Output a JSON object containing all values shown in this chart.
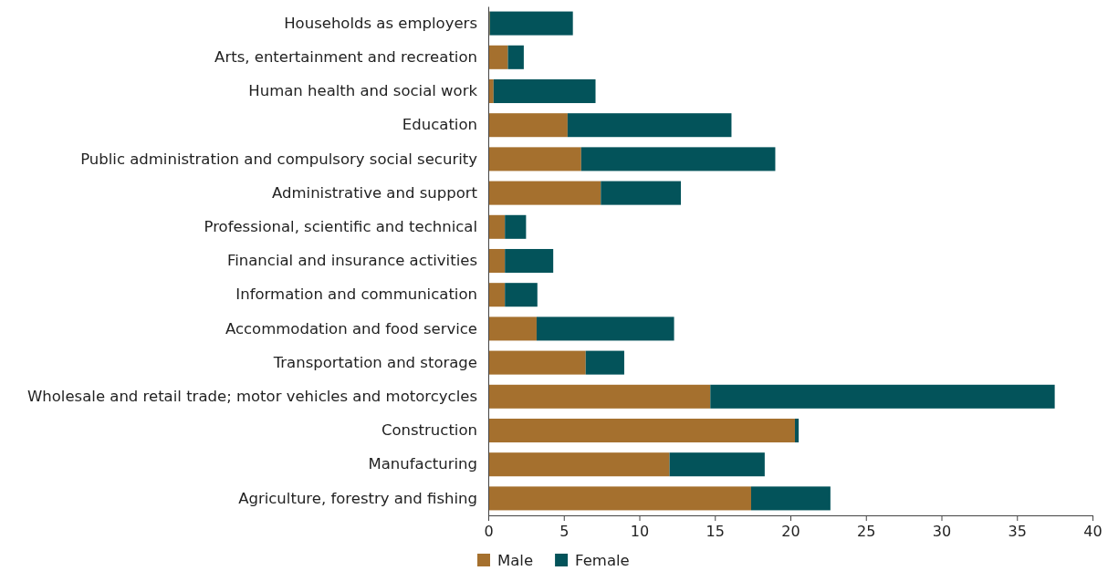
{
  "chart_data": {
    "type": "bar",
    "orientation": "horizontal",
    "stacked": true,
    "legend": "bottom",
    "grid": false,
    "categories": [
      "Households as employers",
      "Arts, entertainment and recreation",
      "Human health and social work",
      "Education",
      "Public administration and compulsory social security",
      "Administrative and support",
      "Professional, scientific and technical",
      "Financial and insurance activities",
      "Information and communication",
      "Accommodation and food service",
      "Transportation and storage",
      "Wholesale and retail trade; motor vehicles and motorcycles",
      "Construction",
      "Manufacturing",
      "Agriculture, forestry and fishing"
    ],
    "series": [
      {
        "name": "Male",
        "color": "#a5702e",
        "values": [
          0.1,
          1.3,
          0.35,
          5.25,
          6.15,
          7.45,
          1.1,
          1.1,
          1.1,
          3.2,
          6.45,
          14.7,
          20.3,
          12.0,
          17.4
        ]
      },
      {
        "name": "Female",
        "color": "#03535a",
        "values": [
          5.5,
          1.05,
          6.75,
          10.85,
          12.85,
          5.3,
          1.4,
          3.2,
          2.15,
          9.1,
          2.55,
          22.8,
          0.25,
          6.3,
          5.25
        ]
      }
    ],
    "xlim": [
      0,
      40
    ],
    "xticks": [
      0,
      5,
      10,
      15,
      20,
      25,
      30,
      35,
      40
    ]
  }
}
